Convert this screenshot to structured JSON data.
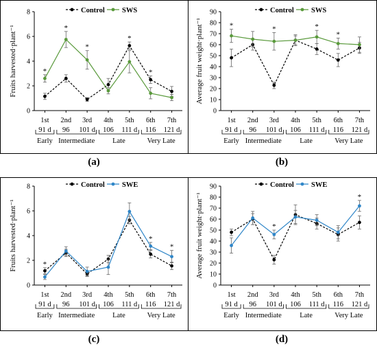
{
  "figure": {
    "x_ticks": [
      "1st",
      "2nd",
      "3rd",
      "4th",
      "5th",
      "6th",
      "7th"
    ],
    "day_labels": [
      "91 d",
      "96",
      "101 d",
      "106",
      "111 d",
      "116",
      "121 d"
    ],
    "groups": [
      "Early",
      "Intermediate",
      "Late",
      "Very Late"
    ],
    "sig_marker": "*"
  },
  "chart_data": [
    {
      "panel": "(a)",
      "type": "line",
      "ylabel": "Fruits harvested·plant⁻¹",
      "ylim": [
        0,
        8
      ],
      "yticks": [
        0,
        2,
        4,
        6,
        8
      ],
      "categories": [
        "1st",
        "2nd",
        "3rd",
        "4th",
        "5th",
        "6th",
        "7th"
      ],
      "series": [
        {
          "name": "Control",
          "color": "#000000",
          "dashed": true,
          "marker": "circle",
          "values": [
            1.15,
            2.6,
            0.9,
            2.1,
            5.25,
            2.5,
            1.55
          ],
          "errors": [
            0.25,
            0.3,
            0.15,
            0.5,
            0.3,
            0.3,
            0.4
          ]
        },
        {
          "name": "SWS",
          "color": "#5a9a3c",
          "dashed": false,
          "marker": "circle",
          "values": [
            2.6,
            5.75,
            4.1,
            1.6,
            3.95,
            1.4,
            1.05
          ],
          "errors": [
            0.3,
            0.65,
            0.75,
            0.25,
            0.9,
            0.45,
            0.25
          ]
        }
      ],
      "significant": [
        1,
        2,
        3,
        5,
        6
      ]
    },
    {
      "panel": "(b)",
      "type": "line",
      "ylabel": "Average fruit weight·plant⁻¹",
      "ylim": [
        0,
        90
      ],
      "yticks": [
        0,
        10,
        20,
        30,
        40,
        50,
        60,
        70,
        80,
        90
      ],
      "categories": [
        "1st",
        "2nd",
        "3rd",
        "4th",
        "5th",
        "6th",
        "7th"
      ],
      "series": [
        {
          "name": "Control",
          "color": "#000000",
          "dashed": true,
          "marker": "circle",
          "values": [
            48,
            60,
            23,
            64,
            56,
            46,
            57
          ],
          "errors": [
            8,
            5,
            3,
            4,
            5,
            6,
            5
          ]
        },
        {
          "name": "SWS",
          "color": "#5a9a3c",
          "dashed": false,
          "marker": "circle",
          "values": [
            68,
            65,
            63,
            64,
            67,
            61,
            60
          ],
          "errors": [
            6,
            7,
            8,
            5,
            6,
            5,
            7
          ]
        }
      ],
      "significant": [
        1,
        3,
        5,
        6
      ]
    },
    {
      "panel": "(c)",
      "type": "line",
      "ylabel": "Fruits harvested·plant⁻¹",
      "ylim": [
        0,
        8
      ],
      "yticks": [
        0,
        2,
        4,
        6,
        8
      ],
      "categories": [
        "1st",
        "2nd",
        "3rd",
        "4th",
        "5th",
        "6th",
        "7th"
      ],
      "series": [
        {
          "name": "Control",
          "color": "#000000",
          "dashed": true,
          "marker": "circle",
          "values": [
            1.15,
            2.6,
            0.9,
            2.1,
            5.25,
            2.5,
            1.55
          ],
          "errors": [
            0.25,
            0.3,
            0.2,
            0.3,
            0.3,
            0.3,
            0.3
          ]
        },
        {
          "name": "SWE",
          "color": "#2f86c8",
          "dashed": false,
          "marker": "circle",
          "values": [
            0.65,
            2.75,
            1.1,
            1.45,
            5.95,
            3.15,
            2.3
          ],
          "errors": [
            0.2,
            0.35,
            0.35,
            0.6,
            0.7,
            0.3,
            0.5
          ]
        }
      ],
      "significant": [
        1,
        6,
        7
      ]
    },
    {
      "panel": "(d)",
      "type": "line",
      "ylabel": "Average fruit weight·plant⁻¹",
      "ylim": [
        0,
        90
      ],
      "yticks": [
        0,
        10,
        20,
        30,
        40,
        50,
        60,
        70,
        80,
        90
      ],
      "categories": [
        "1st",
        "2nd",
        "3rd",
        "4th",
        "5th",
        "6th",
        "7th"
      ],
      "series": [
        {
          "name": "Control",
          "color": "#000000",
          "dashed": true,
          "marker": "circle",
          "values": [
            48,
            60,
            23,
            64,
            56,
            46,
            57
          ],
          "errors": [
            3,
            5,
            4,
            9,
            5,
            6,
            6
          ]
        },
        {
          "name": "SWE",
          "color": "#2f86c8",
          "dashed": false,
          "marker": "circle",
          "values": [
            36,
            61,
            46,
            62,
            59,
            48,
            72
          ],
          "errors": [
            7,
            6,
            4,
            6,
            5,
            6,
            5
          ]
        }
      ],
      "significant": [
        3,
        7
      ]
    }
  ]
}
